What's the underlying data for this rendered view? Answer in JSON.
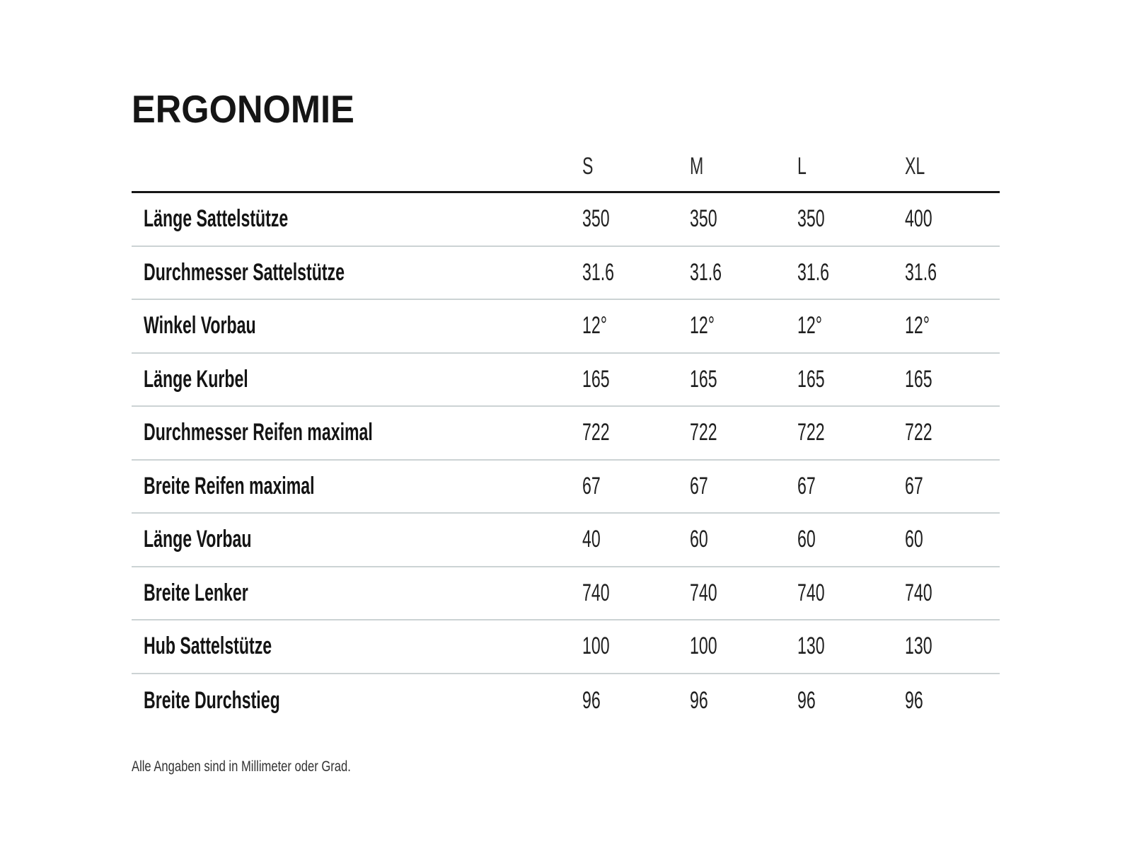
{
  "page": {
    "title": "ERGONOMIE",
    "footnote": "Alle Angaben sind in Millimeter oder Grad."
  },
  "table": {
    "size_columns": [
      "S",
      "M",
      "L",
      "XL"
    ],
    "rows": [
      {
        "label": "Länge Sattelstütze",
        "values": [
          "350",
          "350",
          "350",
          "400"
        ]
      },
      {
        "label": "Durchmesser Sattelstütze",
        "values": [
          "31.6",
          "31.6",
          "31.6",
          "31.6"
        ]
      },
      {
        "label": "Winkel Vorbau",
        "values": [
          "12°",
          "12°",
          "12°",
          "12°"
        ]
      },
      {
        "label": "Länge Kurbel",
        "values": [
          "165",
          "165",
          "165",
          "165"
        ]
      },
      {
        "label": "Durchmesser Reifen maximal",
        "values": [
          "722",
          "722",
          "722",
          "722"
        ]
      },
      {
        "label": "Breite Reifen maximal",
        "values": [
          "67",
          "67",
          "67",
          "67"
        ]
      },
      {
        "label": "Länge Vorbau",
        "values": [
          "40",
          "60",
          "60",
          "60"
        ]
      },
      {
        "label": "Breite Lenker",
        "values": [
          "740",
          "740",
          "740",
          "740"
        ]
      },
      {
        "label": "Hub Sattelstütze",
        "values": [
          "100",
          "100",
          "130",
          "130"
        ]
      },
      {
        "label": "Breite Durchstieg",
        "values": [
          "96",
          "96",
          "96",
          "96"
        ]
      }
    ]
  },
  "colors": {
    "background": "#ffffff",
    "text_primary": "#141414",
    "text_secondary": "#1f1f1f",
    "header_rule": "#161616",
    "row_separator": "#ccd3d4"
  }
}
